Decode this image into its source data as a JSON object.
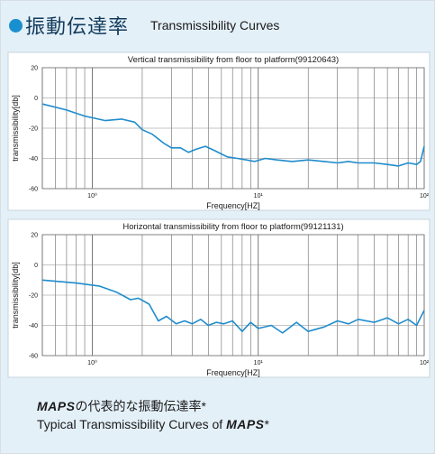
{
  "header": {
    "title_jp": "振動伝達率",
    "title_en": "Transmissibility Curves"
  },
  "captions": {
    "brand": "MAPS",
    "line1_rest": "の代表的な振動伝達率*",
    "line2_prefix": "Typical Transmissibility Curves of ",
    "line2_suffix": "*"
  },
  "chart_data": [
    {
      "type": "line",
      "title": "Vertical transmissibility from floor to platform(99120643)",
      "xlabel": "Frequency[HZ]",
      "ylabel": "transmissibility[db]",
      "x_scale": "log",
      "xlim": [
        0.5,
        100
      ],
      "ylim": [
        -60,
        20
      ],
      "y_ticks": [
        20,
        0,
        -20,
        -40,
        -60
      ],
      "x_tick_labels": [
        {
          "value": 1,
          "label": "10⁰"
        },
        {
          "value": 10,
          "label": "10¹"
        },
        {
          "value": 100,
          "label": "10²"
        }
      ],
      "grid": true,
      "color": "#1f8ccc",
      "series": [
        {
          "x": [
            0.5,
            0.7,
            0.9,
            1.2,
            1.5,
            1.8,
            2.0,
            2.3,
            2.7,
            3.0,
            3.4,
            3.8,
            4.2,
            4.8,
            5.5,
            6.5,
            7.5,
            8.5,
            9.5,
            11,
            13,
            16,
            20,
            25,
            30,
            35,
            40,
            50,
            60,
            70,
            80,
            90,
            95,
            100
          ],
          "y": [
            -4,
            -8,
            -12,
            -15,
            -14,
            -16,
            -21,
            -24,
            -30,
            -33,
            -33,
            -36,
            -34,
            -32,
            -35,
            -39,
            -40,
            -41,
            -42,
            -40,
            -41,
            -42,
            -41,
            -42,
            -43,
            -42,
            -43,
            -43,
            -44,
            -45,
            -43,
            -44,
            -42,
            -32
          ]
        }
      ]
    },
    {
      "type": "line",
      "title": "Horizontal transmissibility from floor to platform(99121131)",
      "xlabel": "Frequency[HZ]",
      "ylabel": "transmissibility[db]",
      "x_scale": "log",
      "xlim": [
        0.5,
        100
      ],
      "ylim": [
        -60,
        20
      ],
      "y_ticks": [
        20,
        0,
        -20,
        -40,
        -60
      ],
      "x_tick_labels": [
        {
          "value": 1,
          "label": "10⁰"
        },
        {
          "value": 10,
          "label": "10¹"
        },
        {
          "value": 100,
          "label": "10²"
        }
      ],
      "grid": true,
      "color": "#1f8ccc",
      "series": [
        {
          "x": [
            0.5,
            0.8,
            1.1,
            1.4,
            1.7,
            1.9,
            2.2,
            2.5,
            2.8,
            3.2,
            3.6,
            4.0,
            4.5,
            5.0,
            5.6,
            6.2,
            7.0,
            8.0,
            9.0,
            10,
            12,
            14,
            17,
            20,
            25,
            30,
            35,
            40,
            50,
            60,
            70,
            80,
            90,
            100
          ],
          "y": [
            -10,
            -12,
            -14,
            -18,
            -23,
            -22,
            -26,
            -37,
            -34,
            -39,
            -37,
            -39,
            -36,
            -40,
            -38,
            -39,
            -37,
            -44,
            -38,
            -42,
            -40,
            -45,
            -38,
            -44,
            -41,
            -37,
            -39,
            -36,
            -38,
            -35,
            -39,
            -36,
            -40,
            -30
          ]
        }
      ]
    }
  ]
}
